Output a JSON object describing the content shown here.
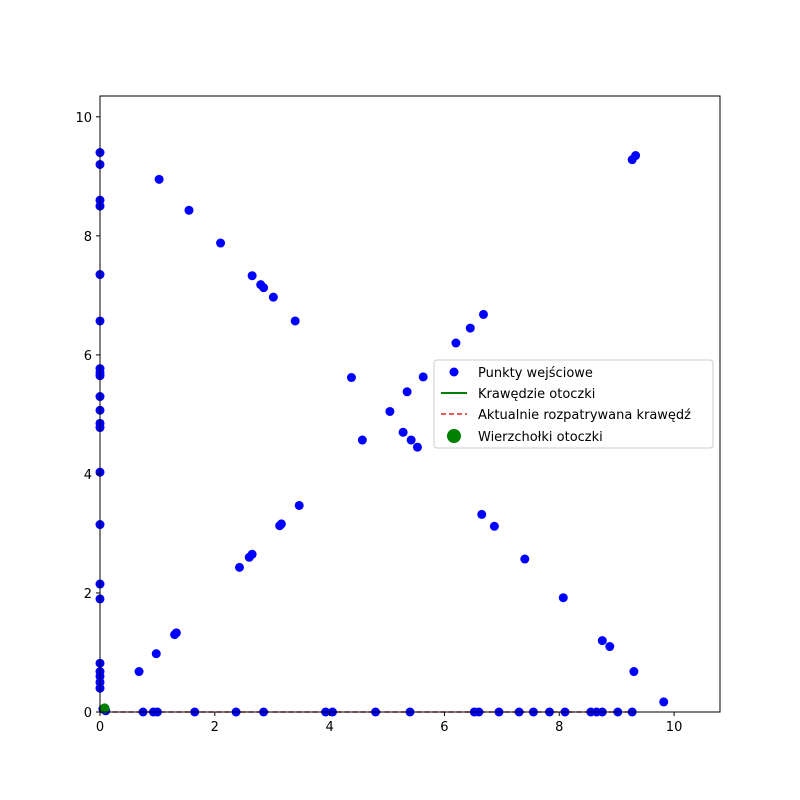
{
  "chart_data": {
    "type": "scatter",
    "xlim": [
      0,
      10.8
    ],
    "ylim": [
      0,
      10.35
    ],
    "grid": false,
    "legend_placement": "center-right",
    "x_ticks": [
      0,
      2,
      4,
      6,
      8,
      10
    ],
    "y_ticks": [
      0,
      2,
      4,
      6,
      8,
      10
    ],
    "colors": {
      "input_points": "#0000ff",
      "hull_edges": "#008000",
      "current_edge": "#d62728",
      "hull_vertices": "#008000"
    },
    "legend": [
      {
        "label": "Punkty wejściowe",
        "style": "point-blue"
      },
      {
        "label": "Krawędzie otoczki",
        "style": "line-green"
      },
      {
        "label": "Aktualnie rozpatrywana krawędź",
        "style": "dashed-red"
      },
      {
        "label": "Wierzchołki otoczki",
        "style": "point-green-large"
      }
    ],
    "series": [
      {
        "name": "Punkty wejściowe",
        "points": [
          [
            0,
            9.4
          ],
          [
            0,
            9.2
          ],
          [
            0,
            8.6
          ],
          [
            0,
            8.5
          ],
          [
            0,
            7.35
          ],
          [
            0,
            6.57
          ],
          [
            0,
            5.77
          ],
          [
            0,
            5.7
          ],
          [
            0,
            5.65
          ],
          [
            0,
            5.3
          ],
          [
            0,
            5.07
          ],
          [
            0,
            4.85
          ],
          [
            0,
            4.78
          ],
          [
            0,
            4.03
          ],
          [
            0,
            3.15
          ],
          [
            0,
            2.15
          ],
          [
            0,
            1.9
          ],
          [
            0,
            0.82
          ],
          [
            0,
            0.68
          ],
          [
            0,
            0.6
          ],
          [
            0,
            0.5
          ],
          [
            0,
            0.4
          ],
          [
            1.03,
            8.95
          ],
          [
            1.55,
            8.43
          ],
          [
            2.1,
            7.88
          ],
          [
            2.65,
            7.33
          ],
          [
            2.8,
            7.18
          ],
          [
            2.85,
            7.13
          ],
          [
            3.02,
            6.97
          ],
          [
            3.4,
            6.57
          ],
          [
            4.38,
            5.62
          ],
          [
            4.57,
            4.57
          ],
          [
            5.05,
            5.05
          ],
          [
            5.28,
            4.7
          ],
          [
            5.35,
            5.38
          ],
          [
            5.42,
            4.57
          ],
          [
            5.53,
            4.45
          ],
          [
            5.63,
            5.63
          ],
          [
            6.2,
            6.2
          ],
          [
            6.45,
            6.45
          ],
          [
            6.68,
            6.68
          ],
          [
            9.27,
            9.28
          ],
          [
            9.33,
            9.35
          ],
          [
            0.68,
            0.68
          ],
          [
            0.98,
            0.98
          ],
          [
            1.3,
            1.3
          ],
          [
            1.33,
            1.33
          ],
          [
            2.43,
            2.43
          ],
          [
            2.6,
            2.6
          ],
          [
            2.65,
            2.65
          ],
          [
            3.13,
            3.13
          ],
          [
            3.16,
            3.16
          ],
          [
            3.47,
            3.47
          ],
          [
            6.65,
            3.32
          ],
          [
            6.87,
            3.12
          ],
          [
            7.4,
            2.57
          ],
          [
            8.07,
            1.92
          ],
          [
            8.75,
            1.2
          ],
          [
            8.88,
            1.1
          ],
          [
            9.3,
            0.68
          ],
          [
            9.82,
            0.17
          ],
          [
            0.05,
            0.05
          ],
          [
            0.1,
            0.02
          ],
          [
            0.75,
            0
          ],
          [
            0.93,
            0
          ],
          [
            1.0,
            0
          ],
          [
            1.65,
            0
          ],
          [
            2.37,
            0
          ],
          [
            2.85,
            0
          ],
          [
            3.93,
            0
          ],
          [
            4.05,
            0
          ],
          [
            4.8,
            0
          ],
          [
            5.4,
            0
          ],
          [
            6.52,
            0
          ],
          [
            6.6,
            0
          ],
          [
            6.95,
            0
          ],
          [
            7.3,
            0
          ],
          [
            7.55,
            0
          ],
          [
            7.83,
            0
          ],
          [
            8.1,
            0
          ],
          [
            8.55,
            0
          ],
          [
            8.65,
            0
          ],
          [
            8.75,
            0
          ],
          [
            9.02,
            0
          ],
          [
            9.27,
            0
          ]
        ]
      },
      {
        "name": "Wierzchołki otoczki",
        "points": [
          [
            0.08,
            0.06
          ]
        ]
      },
      {
        "name": "Aktualnie rozpatrywana krawędź",
        "points": [
          [
            0.08,
            0.0
          ],
          [
            9.27,
            0.0
          ]
        ]
      }
    ]
  }
}
